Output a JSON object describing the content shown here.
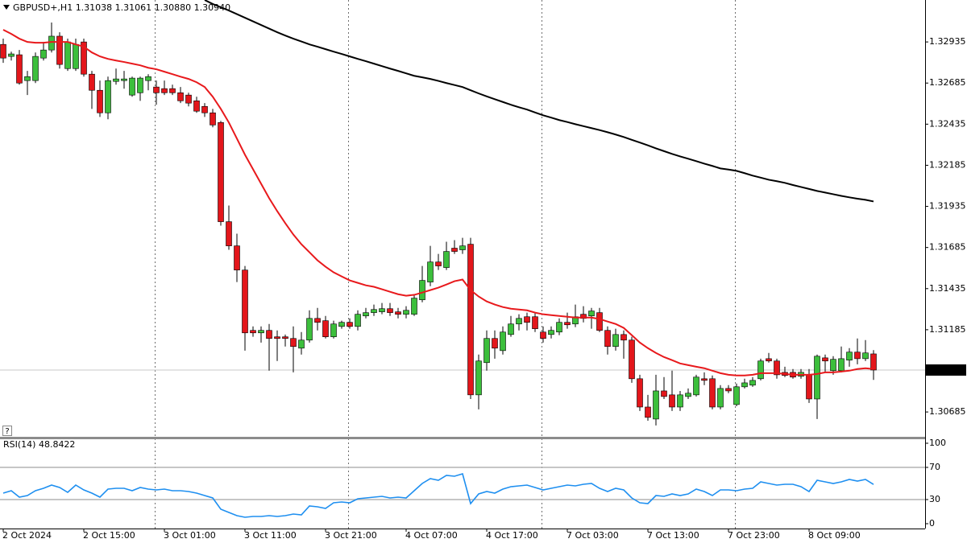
{
  "chart_data": [
    {
      "type": "candlestick",
      "info_label": "GBPUSD+,H1  1.31038 1.31061 1.30880 1.30940",
      "help_button": "?",
      "categories": [
        "2 Oct 2024",
        null,
        null,
        null,
        null,
        null,
        null,
        null,
        null,
        null,
        "2 Oct 15:00",
        null,
        null,
        null,
        null,
        null,
        null,
        null,
        null,
        null,
        "3 Oct 01:00",
        null,
        null,
        null,
        null,
        null,
        null,
        null,
        null,
        null,
        "3 Oct 11:00",
        null,
        null,
        null,
        null,
        null,
        null,
        null,
        null,
        null,
        "3 Oct 21:00",
        null,
        null,
        null,
        null,
        null,
        null,
        null,
        null,
        null,
        "4 Oct 07:00",
        null,
        null,
        null,
        null,
        null,
        null,
        null,
        null,
        null,
        "4 Oct 17:00",
        null,
        null,
        null,
        null,
        null,
        null,
        null,
        null,
        null,
        "7 Oct 03:00",
        null,
        null,
        null,
        null,
        null,
        null,
        null,
        null,
        null,
        "7 Oct 13:00",
        null,
        null,
        null,
        null,
        null,
        null,
        null,
        null,
        null,
        "7 Oct 23:00",
        null,
        null,
        null,
        null,
        null,
        null,
        null,
        null,
        null,
        "8 Oct 09:00",
        null,
        null,
        null,
        null,
        null,
        null,
        null,
        null
      ],
      "up_color": "#3cbf3c",
      "down_color": "#e3161b",
      "open": [
        1.3292,
        1.32847,
        1.32857,
        1.327,
        1.327,
        1.32837,
        1.32886,
        1.3297,
        1.32773,
        1.32773,
        1.32935,
        1.32739,
        1.32641,
        1.32504,
        1.32695,
        1.327,
        1.32612,
        1.32626,
        1.327,
        1.32661,
        1.32651,
        1.32651,
        1.32626,
        1.32612,
        1.32577,
        1.32543,
        1.32504,
        1.32445,
        1.31842,
        1.31695,
        1.31548,
        1.31181,
        1.31166,
        1.31181,
        1.31142,
        1.31142,
        1.31132,
        1.31073,
        1.31122,
        1.31254,
        1.3124,
        1.31142,
        1.31205,
        1.3123,
        1.31205,
        1.31269,
        1.31289,
        1.31294,
        1.31313,
        1.31294,
        1.31279,
        1.31279,
        1.31367,
        1.31475,
        1.31597,
        1.31563,
        1.31681,
        1.31671,
        1.31705,
        1.30789,
        1.30985,
        1.31132,
        1.31058,
        1.31156,
        1.3122,
        1.31264,
        1.31264,
        1.31171,
        1.31156,
        1.31171,
        1.3123,
        1.3122,
        1.31279,
        1.31269,
        1.31289,
        1.31181,
        1.31083,
        1.31156,
        1.31122,
        1.30887,
        1.30715,
        1.30642,
        1.30813,
        1.30789,
        1.30715,
        1.30779,
        1.30789,
        1.30887,
        1.30887,
        1.30715,
        1.30828,
        1.3073,
        1.30838,
        1.30848,
        1.30887,
        1.31009,
        1.30995,
        1.30926,
        1.30926,
        1.30902,
        1.30911,
        1.30764,
        1.31014,
        1.30936,
        1.30936,
        1.31,
        1.31049,
        1.31009,
        1.31038
      ],
      "high": [
        1.32955,
        1.32876,
        1.32886,
        1.32759,
        1.32871,
        1.32935,
        1.33053,
        1.32994,
        1.32955,
        1.32955,
        1.32955,
        1.32759,
        1.327,
        1.32724,
        1.32773,
        1.32759,
        1.32724,
        1.32724,
        1.32739,
        1.327,
        1.327,
        1.32675,
        1.32661,
        1.32626,
        1.32602,
        1.32563,
        1.32528,
        1.32455,
        1.3194,
        1.31769,
        1.31573,
        1.31205,
        1.31205,
        1.3122,
        1.31181,
        1.31156,
        1.31205,
        1.31171,
        1.31303,
        1.31318,
        1.31269,
        1.3124,
        1.3124,
        1.31254,
        1.31303,
        1.31318,
        1.31338,
        1.31348,
        1.31348,
        1.31318,
        1.31328,
        1.31401,
        1.31573,
        1.31695,
        1.31646,
        1.3172,
        1.3173,
        1.31744,
        1.31744,
        1.31034,
        1.31181,
        1.31181,
        1.31205,
        1.31269,
        1.31279,
        1.31289,
        1.31289,
        1.31205,
        1.31205,
        1.31254,
        1.31289,
        1.31338,
        1.31328,
        1.31318,
        1.31318,
        1.31205,
        1.31191,
        1.31181,
        1.31142,
        1.30911,
        1.30789,
        1.30911,
        1.30897,
        1.30936,
        1.30813,
        1.30828,
        1.30911,
        1.30926,
        1.30907,
        1.30848,
        1.30848,
        1.30858,
        1.30887,
        1.30897,
        1.31009,
        1.31044,
        1.31009,
        1.3096,
        1.30946,
        1.30946,
        1.30946,
        1.31034,
        1.31034,
        1.31024,
        1.31083,
        1.31073,
        1.31132,
        1.31122,
        1.31061
      ],
      "low": [
        1.32808,
        1.32822,
        1.32675,
        1.32612,
        1.32685,
        1.32822,
        1.32871,
        1.32773,
        1.32759,
        1.32759,
        1.32724,
        1.32528,
        1.32479,
        1.32465,
        1.32675,
        1.32651,
        1.32602,
        1.32577,
        1.32641,
        1.32553,
        1.32612,
        1.32612,
        1.32563,
        1.32543,
        1.32504,
        1.32479,
        1.32416,
        1.31818,
        1.31671,
        1.31475,
        1.31058,
        1.31142,
        1.31107,
        1.30936,
        1.30995,
        1.31083,
        1.30926,
        1.31034,
        1.31107,
        1.31181,
        1.31132,
        1.31132,
        1.31191,
        1.31191,
        1.31181,
        1.31254,
        1.31269,
        1.31279,
        1.31269,
        1.31254,
        1.31254,
        1.31269,
        1.31352,
        1.3145,
        1.31548,
        1.31548,
        1.31646,
        1.31646,
        1.30764,
        1.30701,
        1.30936,
        1.31009,
        1.31034,
        1.31142,
        1.31181,
        1.31181,
        1.31171,
        1.31107,
        1.31132,
        1.31152,
        1.31191,
        1.31201,
        1.3123,
        1.31191,
        1.31171,
        1.31034,
        1.31058,
        1.31009,
        1.30862,
        1.30691,
        1.30632,
        1.30603,
        1.30764,
        1.30691,
        1.30691,
        1.30764,
        1.30779,
        1.30848,
        1.30701,
        1.30701,
        1.30799,
        1.3072,
        1.30828,
        1.30838,
        1.30877,
        1.30985,
        1.30887,
        1.30897,
        1.30887,
        1.30887,
        1.3074,
        1.30642,
        1.30926,
        1.30911,
        1.30926,
        1.3096,
        1.30975,
        1.30995,
        1.3088
      ],
      "close": [
        1.32837,
        1.32862,
        1.32685,
        1.32724,
        1.32847,
        1.32886,
        1.3297,
        1.32798,
        1.32935,
        1.3292,
        1.32739,
        1.32641,
        1.32504,
        1.327,
        1.3271,
        1.3271,
        1.32715,
        1.32715,
        1.32724,
        1.32626,
        1.32626,
        1.32626,
        1.32577,
        1.32563,
        1.32514,
        1.32504,
        1.3243,
        1.31842,
        1.31695,
        1.31548,
        1.31166,
        1.31166,
        1.31181,
        1.31132,
        1.31132,
        1.31132,
        1.31083,
        1.31122,
        1.31254,
        1.3123,
        1.31142,
        1.3122,
        1.3123,
        1.31205,
        1.31279,
        1.31289,
        1.31308,
        1.31313,
        1.31289,
        1.31279,
        1.31303,
        1.31377,
        1.31485,
        1.31597,
        1.31573,
        1.31661,
        1.31661,
        1.31695,
        1.30789,
        1.30995,
        1.31132,
        1.31073,
        1.31171,
        1.3122,
        1.31254,
        1.3123,
        1.31191,
        1.31132,
        1.31181,
        1.3123,
        1.31215,
        1.31264,
        1.31254,
        1.31299,
        1.31181,
        1.31083,
        1.31156,
        1.31122,
        1.30887,
        1.30715,
        1.30652,
        1.30813,
        1.30779,
        1.30715,
        1.30789,
        1.30799,
        1.30897,
        1.30877,
        1.30715,
        1.30828,
        1.30813,
        1.30838,
        1.30862,
        1.30877,
        1.30995,
        1.30995,
        1.30911,
        1.30907,
        1.30897,
        1.30926,
        1.30764,
        1.31024,
        1.30995,
        1.31005,
        1.31009,
        1.31049,
        1.31009,
        1.31044,
        1.3094
      ],
      "lines": [
        {
          "color": "#e8191c",
          "values": [
            1.33009,
            1.32984,
            1.32955,
            1.32935,
            1.3293,
            1.3293,
            1.32935,
            1.32935,
            1.32935,
            1.3292,
            1.32906,
            1.32871,
            1.32847,
            1.32832,
            1.32822,
            1.32813,
            1.32803,
            1.32793,
            1.32778,
            1.32769,
            1.32754,
            1.32739,
            1.32724,
            1.3271,
            1.3269,
            1.32661,
            1.32602,
            1.32528,
            1.32445,
            1.32347,
            1.32249,
            1.32161,
            1.32073,
            1.31985,
            1.31906,
            1.31833,
            1.31764,
            1.31705,
            1.31656,
            1.31607,
            1.31568,
            1.31534,
            1.31509,
            1.31485,
            1.3147,
            1.31455,
            1.31446,
            1.31431,
            1.31416,
            1.31401,
            1.31392,
            1.31397,
            1.31411,
            1.31426,
            1.31441,
            1.3146,
            1.3148,
            1.3149,
            1.31426,
            1.31387,
            1.31357,
            1.31338,
            1.31323,
            1.31313,
            1.31308,
            1.31303,
            1.31289,
            1.31279,
            1.31274,
            1.31269,
            1.31264,
            1.31259,
            1.31259,
            1.31259,
            1.3125,
            1.31235,
            1.3122,
            1.31196,
            1.31152,
            1.31107,
            1.31073,
            1.31044,
            1.31019,
            1.31,
            1.3098,
            1.3097,
            1.3096,
            1.30951,
            1.30936,
            1.30921,
            1.30911,
            1.30907,
            1.30907,
            1.30911,
            1.30921,
            1.30921,
            1.30921,
            1.30916,
            1.30911,
            1.30911,
            1.30911,
            1.30916,
            1.30926,
            1.30926,
            1.30931,
            1.30936,
            1.30946,
            1.30951,
            1.30946
          ]
        },
        {
          "color": "#000000",
          "values": [
            null,
            null,
            null,
            null,
            null,
            null,
            null,
            null,
            null,
            null,
            null,
            null,
            null,
            null,
            null,
            null,
            null,
            null,
            null,
            null,
            null,
            null,
            null,
            null,
            null,
            1.3319,
            1.33166,
            1.33146,
            1.33126,
            1.33104,
            1.33082,
            1.3306,
            1.33038,
            1.33016,
            1.32994,
            1.32974,
            1.32955,
            1.32938,
            1.3292,
            1.32906,
            1.32891,
            1.32876,
            1.32862,
            1.32847,
            1.32832,
            1.32818,
            1.32803,
            1.32788,
            1.32773,
            1.32759,
            1.32744,
            1.32729,
            1.3272,
            1.3271,
            1.32698,
            1.32685,
            1.32673,
            1.32661,
            1.32641,
            1.32622,
            1.32604,
            1.32587,
            1.3257,
            1.32553,
            1.32538,
            1.32524,
            1.32506,
            1.32489,
            1.32475,
            1.3246,
            1.32448,
            1.32435,
            1.32423,
            1.32411,
            1.32399,
            1.32386,
            1.32372,
            1.32357,
            1.3234,
            1.32323,
            1.32306,
            1.32288,
            1.32271,
            1.32254,
            1.32239,
            1.32225,
            1.3221,
            1.32195,
            1.32181,
            1.32166,
            1.32159,
            1.32151,
            1.32137,
            1.32122,
            1.3211,
            1.32097,
            1.32088,
            1.32078,
            1.32065,
            1.32053,
            1.32041,
            1.32029,
            1.32019,
            1.32009,
            1.31999,
            1.3199,
            1.31982,
            1.31975,
            1.31965
          ]
        }
      ],
      "ylim": [
        1.30529,
        1.3319
      ],
      "yticks": [
        1.30685,
        1.31185,
        1.31435,
        1.31685,
        1.31935,
        1.32185,
        1.32435,
        1.32685,
        1.32935
      ],
      "current_price": {
        "value": 1.3094,
        "label": "1.30940"
      }
    },
    {
      "type": "line",
      "title": "RSI(14) 48.8422",
      "color": "#1e8ff0",
      "values": [
        38,
        41,
        33,
        35,
        41,
        44,
        48,
        45,
        39,
        48,
        42,
        38,
        33,
        43,
        44,
        44,
        41,
        45,
        43,
        42,
        43,
        41,
        41,
        40,
        38,
        35,
        32,
        18,
        14,
        10,
        8,
        9,
        9,
        10,
        9,
        10,
        12,
        11,
        22,
        21,
        19,
        26,
        27,
        26,
        31,
        32,
        33,
        34,
        32,
        33,
        32,
        41,
        50,
        56,
        54,
        60,
        59,
        62,
        25,
        37,
        40,
        38,
        43,
        46,
        47,
        48,
        45,
        42,
        44,
        46,
        48,
        47,
        49,
        50,
        44,
        40,
        44,
        42,
        32,
        26,
        25,
        35,
        34,
        37,
        35,
        37,
        43,
        40,
        35,
        42,
        42,
        41,
        43,
        44,
        52,
        50,
        48,
        49,
        49,
        46,
        40,
        54,
        52,
        50,
        52,
        55,
        53,
        55,
        48.8422
      ],
      "ylim": [
        0,
        100
      ],
      "yticks": [
        0,
        30,
        70,
        100
      ],
      "levels": [
        30,
        70
      ]
    }
  ]
}
